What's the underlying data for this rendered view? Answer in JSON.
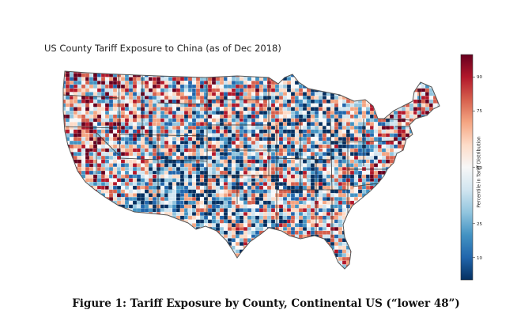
{
  "map": {
    "title": "US County Tariff Exposure to China (as of Dec 2018)"
  },
  "colorbar": {
    "axis_title": "Percentile in Tariff Distribution",
    "ticks": [
      {
        "value": 90,
        "label": "90"
      },
      {
        "value": 75,
        "label": "75"
      },
      {
        "value": 50,
        "label": "50"
      },
      {
        "value": 25,
        "label": "25"
      },
      {
        "value": 10,
        "label": "10"
      }
    ],
    "stops": [
      "#053061",
      "#2166ac",
      "#4393c3",
      "#92c5de",
      "#d1e5f0",
      "#f7f7f7",
      "#fddbc7",
      "#f4a582",
      "#d6604d",
      "#b2182b",
      "#67001f"
    ]
  },
  "caption": {
    "text": "Figure 1: Tariff Exposure by County, Continental US (“lower 48”)"
  }
}
